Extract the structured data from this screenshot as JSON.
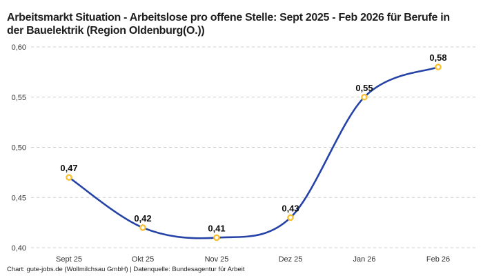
{
  "footer": "Chart: gute-jobs.de (Wollmilchsau GmbH) | Datenquelle: Bundesagentur für Arbeit",
  "colors": {
    "line": "#2543a6",
    "marker": "#f9c233",
    "marker_fill": "#ffffff",
    "grid": "#cccccc",
    "tick_text": "#333333",
    "data_label": "#0d0d0d",
    "title_text": "#1e1e1e",
    "background": "#ffffff"
  },
  "chart_data": {
    "type": "line",
    "title": "Arbeitsmarkt Situation - Arbeitslose pro offene Stelle: Sept 2025 - Feb 2026 für Berufe in der Bauelektrik (Region Oldenburg(O.))",
    "categories": [
      "Sept 25",
      "Okt 25",
      "Nov 25",
      "Dez 25",
      "Jan 26",
      "Feb 26"
    ],
    "series": [
      {
        "name": "Arbeitslose pro offene Stelle",
        "values": [
          0.47,
          0.42,
          0.41,
          0.43,
          0.55,
          0.58
        ],
        "value_labels": [
          "0,47",
          "0,42",
          "0,41",
          "0,43",
          "0,55",
          "0,58"
        ]
      }
    ],
    "xlabel": "",
    "ylabel": "",
    "ylim": [
      0.4,
      0.6
    ],
    "y_ticks": [
      0.4,
      0.45,
      0.5,
      0.55,
      0.6
    ],
    "y_tick_labels": [
      "0,40",
      "0,45",
      "0,50",
      "0,55",
      "0,60"
    ],
    "grid": "horizontal-dashed",
    "legend": "none",
    "line_style": "smooth",
    "marker_style": "open-circle"
  }
}
